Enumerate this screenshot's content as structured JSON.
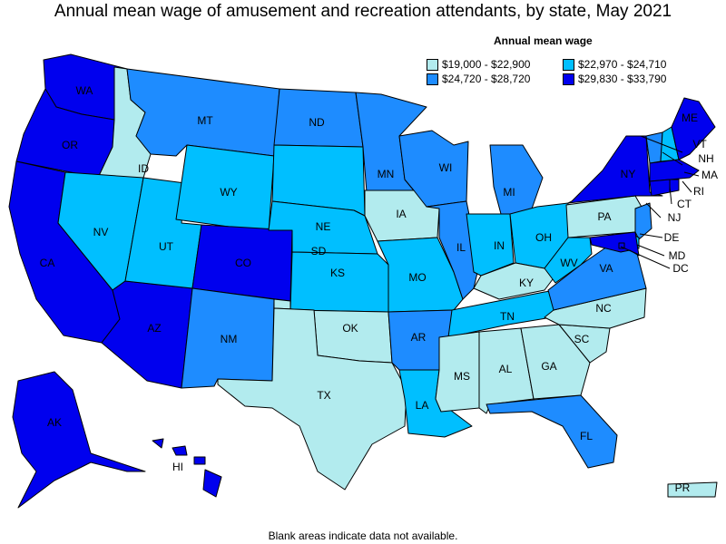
{
  "title": "Annual mean wage of amusement and recreation attendants, by state, May 2021",
  "legend": {
    "title": "Annual mean wage",
    "items": [
      {
        "label": "$19,000 - $22,900",
        "color": "#b2ebee"
      },
      {
        "label": "$22,970 - $24,710",
        "color": "#00bfff"
      },
      {
        "label": "$24,720 - $28,720",
        "color": "#1e8cff"
      },
      {
        "label": "$29,830 - $33,790",
        "color": "#0000ee"
      }
    ]
  },
  "footnote": "Blank areas indicate data not available.",
  "states": {
    "WA": {
      "label": "WA",
      "tier": 3
    },
    "OR": {
      "label": "OR",
      "tier": 3
    },
    "CA": {
      "label": "CA",
      "tier": 3
    },
    "ID": {
      "label": "ID",
      "tier": 0
    },
    "NV": {
      "label": "NV",
      "tier": 1
    },
    "AZ": {
      "label": "AZ",
      "tier": 3
    },
    "UT": {
      "label": "UT",
      "tier": 1
    },
    "MT": {
      "label": "MT",
      "tier": 2
    },
    "WY": {
      "label": "WY",
      "tier": 1
    },
    "CO": {
      "label": "CO",
      "tier": 3
    },
    "NM": {
      "label": "NM",
      "tier": 2
    },
    "ND": {
      "label": "ND",
      "tier": 2
    },
    "SD": {
      "label": "SD",
      "tier": 1
    },
    "NE": {
      "label": "NE",
      "tier": 1
    },
    "KS": {
      "label": "KS",
      "tier": 1
    },
    "OK": {
      "label": "OK",
      "tier": 0
    },
    "TX": {
      "label": "TX",
      "tier": 0
    },
    "MN": {
      "label": "MN",
      "tier": 2
    },
    "IA": {
      "label": "IA",
      "tier": 0
    },
    "MO": {
      "label": "MO",
      "tier": 1
    },
    "AR": {
      "label": "AR",
      "tier": 2
    },
    "LA": {
      "label": "LA",
      "tier": 1
    },
    "WI": {
      "label": "WI",
      "tier": 2
    },
    "IL": {
      "label": "IL",
      "tier": 2
    },
    "MI": {
      "label": "MI",
      "tier": 2
    },
    "IN": {
      "label": "IN",
      "tier": 1
    },
    "OH": {
      "label": "OH",
      "tier": 1
    },
    "KY": {
      "label": "KY",
      "tier": 0
    },
    "TN": {
      "label": "TN",
      "tier": 1
    },
    "MS": {
      "label": "MS",
      "tier": 0
    },
    "AL": {
      "label": "AL",
      "tier": 0
    },
    "GA": {
      "label": "GA",
      "tier": 0
    },
    "FL": {
      "label": "FL",
      "tier": 2
    },
    "SC": {
      "label": "SC",
      "tier": 0
    },
    "NC": {
      "label": "NC",
      "tier": 0
    },
    "VA": {
      "label": "VA",
      "tier": 2
    },
    "WV": {
      "label": "WV",
      "tier": 1
    },
    "PA": {
      "label": "PA",
      "tier": 0
    },
    "NY": {
      "label": "NY",
      "tier": 3
    },
    "ME": {
      "label": "ME",
      "tier": 3
    },
    "VT": {
      "label": "VT",
      "tier": 2
    },
    "NH": {
      "label": "NH",
      "tier": 1
    },
    "MA": {
      "label": "MA",
      "tier": 3
    },
    "RI": {
      "label": "RI",
      "tier": 3
    },
    "CT": {
      "label": "CT",
      "tier": 3
    },
    "NJ": {
      "label": "NJ",
      "tier": 2
    },
    "DE": {
      "label": "DE",
      "tier": 1
    },
    "MD": {
      "label": "MD",
      "tier": 3
    },
    "DC": {
      "label": "DC",
      "tier": 3
    },
    "AK": {
      "label": "AK",
      "tier": 3
    },
    "HI": {
      "label": "HI",
      "tier": 3
    },
    "PR": {
      "label": "PR",
      "tier": 0
    }
  }
}
